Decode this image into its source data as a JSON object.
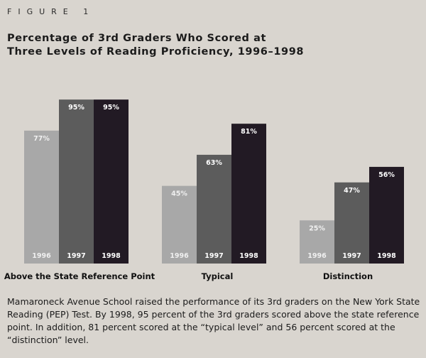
{
  "figure_label": "FIGURE 1",
  "chart_data": {
    "type": "bar",
    "title": "Percentage of 3rd Graders Who Scored at Three Levels of Reading Proficiency, 1996–1998",
    "groups": [
      {
        "label": "Above the State Reference Point",
        "categories": [
          "1996",
          "1997",
          "1998"
        ],
        "values": [
          77,
          95,
          95
        ],
        "value_labels": [
          "77%",
          "95%",
          "95%"
        ]
      },
      {
        "label": "Typical",
        "categories": [
          "1996",
          "1997",
          "1998"
        ],
        "values": [
          45,
          63,
          81
        ],
        "value_labels": [
          "45%",
          "63%",
          "81%"
        ]
      },
      {
        "label": "Distinction",
        "categories": [
          "1996",
          "1997",
          "1998"
        ],
        "values": [
          25,
          47,
          56
        ],
        "value_labels": [
          "25%",
          "47%",
          "56%"
        ]
      }
    ],
    "series_colors": [
      "#a8a8a8",
      "#5c5c5c",
      "#221a24"
    ],
    "ylim": [
      0,
      100
    ],
    "xlabel": "",
    "ylabel": ""
  },
  "caption": "Mamaroneck Avenue School raised the performance of its 3rd graders on the New York State Reading (PEP) Test. By 1998, 95 percent of the 3rd graders scored above the state reference point. In addition, 81 percent scored at the “typical level” and 56 percent scored at the “distinction” level."
}
